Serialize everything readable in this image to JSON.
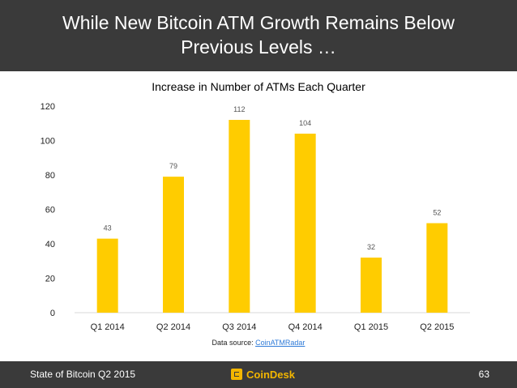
{
  "header": {
    "title_line1": "While New Bitcoin ATM Growth Remains Below",
    "title_line2": "Previous Levels …"
  },
  "source": {
    "prefix": "Data source: ",
    "link": "CoinATMRadar"
  },
  "footer": {
    "left_text": "State of Bitcoin Q2 2015",
    "logo_text": "CoinDesk",
    "page_number": "63"
  },
  "colors": {
    "bar": "#ffcc00",
    "header_bg": "#3a3a3a",
    "brand": "#f3b600",
    "link": "#2f7bd8"
  },
  "chart_data": {
    "type": "bar",
    "title": "Increase in Number of ATMs Each Quarter",
    "categories": [
      "Q1 2014",
      "Q2 2014",
      "Q3 2014",
      "Q4 2014",
      "Q1 2015",
      "Q2 2015"
    ],
    "values": [
      43,
      79,
      112,
      104,
      32,
      52
    ],
    "data_labels": [
      "43",
      "79",
      "112",
      "104",
      "32",
      "52"
    ],
    "ylim": [
      0,
      120
    ],
    "yticks": [
      0,
      20,
      40,
      60,
      80,
      100,
      120
    ],
    "xlabel": "",
    "ylabel": "",
    "grid": false,
    "legend": "none"
  }
}
